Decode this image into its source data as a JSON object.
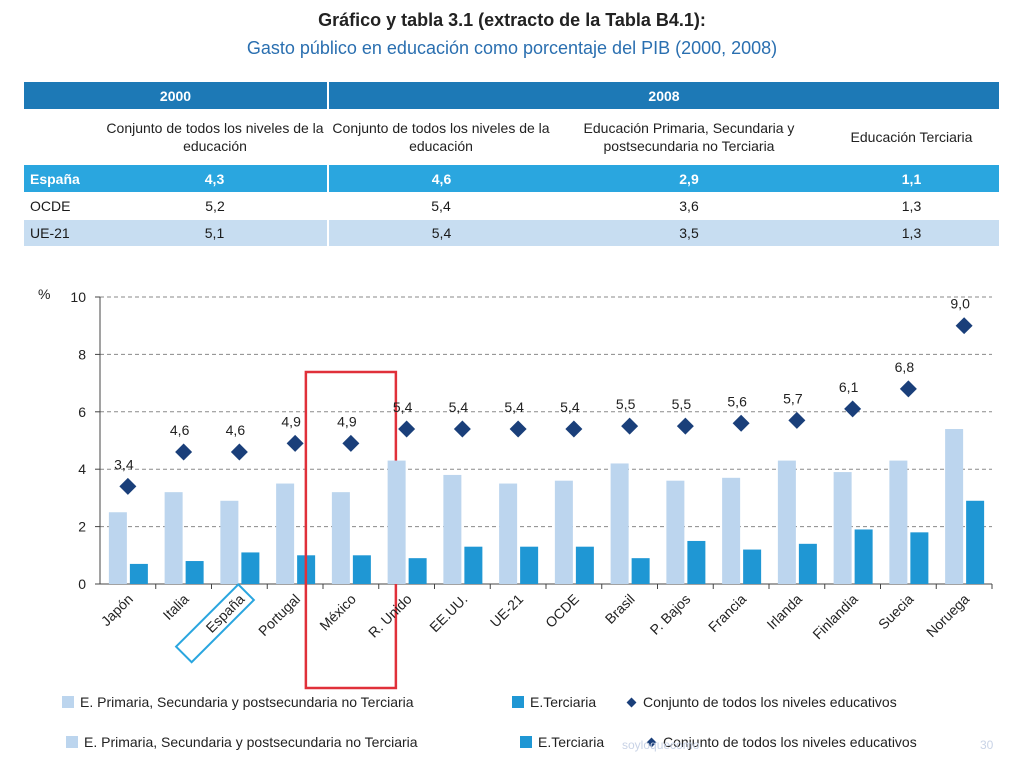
{
  "header": {
    "title": "Gráfico y tabla 3.1 (extracto de la Tabla B4.1):",
    "subtitle": "Gasto público en educación como porcentaje del PIB (2000, 2008)"
  },
  "table": {
    "years": [
      "2000",
      "2008"
    ],
    "columns": [
      "Conjunto de todos los niveles de la educación",
      "Conjunto de todos los niveles de la educación",
      "Educación Primaria, Secundaria y postsecundaria no Terciaria",
      "Educación Terciaria"
    ],
    "rows": [
      {
        "label": "España",
        "values": [
          "4,3",
          "4,6",
          "2,9",
          "1,1"
        ]
      },
      {
        "label": "OCDE",
        "values": [
          "5,2",
          "5,4",
          "3,6",
          "1,3"
        ]
      },
      {
        "label": "UE-21",
        "values": [
          "5,1",
          "5,4",
          "3,5",
          "1,3"
        ]
      }
    ]
  },
  "chart_data": {
    "type": "bar",
    "ylabel": "%",
    "ylim": [
      0,
      10
    ],
    "yticks": [
      "0",
      "2",
      "4",
      "6",
      "8",
      "10"
    ],
    "categories": [
      "Japón",
      "Italia",
      "España",
      "Portugal",
      "México",
      "R. Unido",
      "EE.UU.",
      "UE-21",
      "OCDE",
      "Brasil",
      "P. Bajos",
      "Francia",
      "Irlanda",
      "Finlandia",
      "Suecia",
      "Noruega"
    ],
    "highlighted_category": "España",
    "boxed_category": "México",
    "grid": true,
    "series": [
      {
        "name": "E. Primaria, Secundaria y postsecundaria no Terciaria",
        "kind": "bar",
        "color": "#bcd5ee",
        "values": [
          2.5,
          3.2,
          2.9,
          3.5,
          3.2,
          4.3,
          3.8,
          3.5,
          3.6,
          4.2,
          3.6,
          3.7,
          4.3,
          3.9,
          4.3,
          5.4
        ]
      },
      {
        "name": "E.Terciaria",
        "kind": "bar",
        "color": "#1f97d4",
        "values": [
          0.7,
          0.8,
          1.1,
          1.0,
          1.0,
          0.9,
          1.3,
          1.3,
          1.3,
          0.9,
          1.5,
          1.2,
          1.4,
          1.9,
          1.8,
          2.9
        ]
      },
      {
        "name": "Conjunto de todos los niveles educativos",
        "kind": "marker",
        "color": "#1a3f7a",
        "values": [
          3.4,
          4.6,
          4.6,
          4.9,
          4.9,
          5.4,
          5.4,
          5.4,
          5.4,
          5.5,
          5.5,
          5.6,
          5.7,
          6.1,
          6.8,
          9.0
        ],
        "labels": [
          "3,4",
          "4,6",
          "4,6",
          "4,9",
          "4,9",
          "5,4",
          "5,4",
          "5,4",
          "5,4",
          "5,5",
          "5,5",
          "5,6",
          "5,7",
          "6,1",
          "6,8",
          "9,0"
        ]
      }
    ]
  },
  "legend": [
    {
      "label": "E. Primaria, Secundaria y postsecundaria no Terciaria",
      "color": "#bcd5ee"
    },
    {
      "label": "E.Terciaria",
      "color": "#1f97d4"
    },
    {
      "label": "Conjunto de todos los niveles educativos",
      "color": "#1a3f7a"
    }
  ],
  "watermark": {
    "text": "soyloquecomo",
    "page": "30"
  }
}
